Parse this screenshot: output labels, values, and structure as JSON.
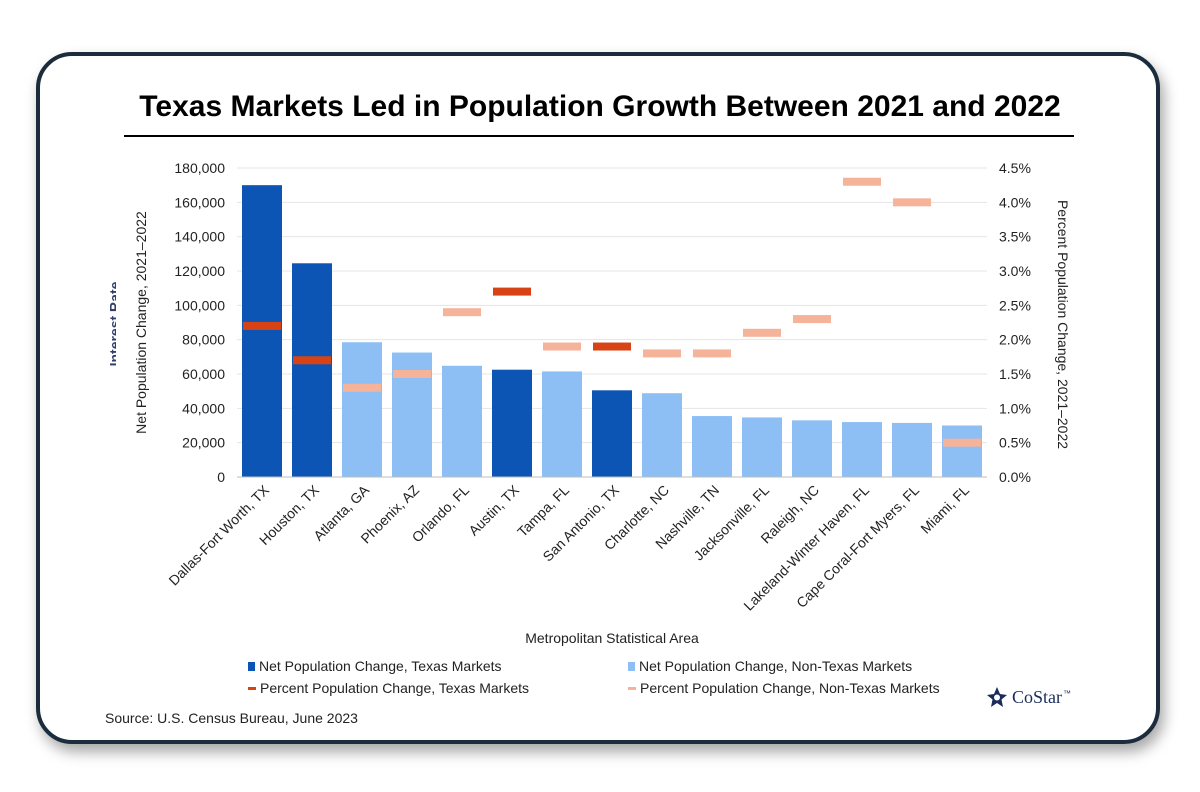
{
  "title": "Texas Markets Led in Population Growth Between 2021 and 2022",
  "ghost_label": "Interest Rate",
  "source": "Source: U.S. Census Bureau, June 2023",
  "brand": {
    "name": "CoStar",
    "mark": "™"
  },
  "colors": {
    "texas_bar": "#0d55b4",
    "nontexas_bar": "#8dbef4",
    "texas_pct": "#d84315",
    "nontexas_pct": "#f5b39a",
    "frame": "#1b2c3d"
  },
  "legend": [
    {
      "label": "Net Population Change, Texas Markets",
      "kind": "bar",
      "color": "#0d55b4"
    },
    {
      "label": "Net Population Change, Non-Texas Markets",
      "kind": "bar",
      "color": "#8dbef4"
    },
    {
      "label": "Percent Population Change, Texas Markets",
      "kind": "line",
      "color": "#d84315"
    },
    {
      "label": "Percent Population Change, Non-Texas Markets",
      "kind": "line",
      "color": "#f5b39a"
    }
  ],
  "chart_data": {
    "type": "bar",
    "title": "Texas Markets Led in Population Growth Between 2021 and 2022",
    "xlabel": "Metropolitan Statistical Area",
    "ylabel": "Net Population Change, 2021–2022",
    "y2label": "Percent Population Change, 2021–2022",
    "ylim": [
      0,
      180000
    ],
    "y2lim": [
      0,
      4.5
    ],
    "yticks": [
      0,
      20000,
      40000,
      60000,
      80000,
      100000,
      120000,
      140000,
      160000,
      180000
    ],
    "ytick_labels": [
      "0",
      "20,000",
      "40,000",
      "60,000",
      "80,000",
      "100,000",
      "120,000",
      "140,000",
      "160,000",
      "180,000"
    ],
    "y2ticks": [
      0,
      0.5,
      1,
      1.5,
      2,
      2.5,
      3,
      3.5,
      4,
      4.5
    ],
    "y2tick_labels": [
      "0.0%",
      "0.5%",
      "1.0%",
      "1.5%",
      "2.0%",
      "2.5%",
      "3.0%",
      "3.5%",
      "4.0%",
      "4.5%"
    ],
    "grid": true,
    "legend_position": "bottom",
    "categories": [
      "Dallas-Fort Worth, TX",
      "Houston, TX",
      "Atlanta, GA",
      "Phoenix, AZ",
      "Orlando, FL",
      "Austin, TX",
      "Tampa, FL",
      "San Antonio, TX",
      "Charlotte, NC",
      "Nashville, TN",
      "Jacksonville, FL",
      "Raleigh, NC",
      "Lakeland-Winter Haven, FL",
      "Cape Coral-Fort Myers, FL",
      "Miami, FL"
    ],
    "is_texas": [
      true,
      true,
      false,
      false,
      false,
      true,
      false,
      true,
      false,
      false,
      false,
      false,
      false,
      false,
      false
    ],
    "series": [
      {
        "name": "Net Population Change",
        "axis": "left",
        "values": [
          170000,
          124500,
          78500,
          72500,
          64800,
          62500,
          61500,
          50500,
          48800,
          35500,
          34700,
          33000,
          32000,
          31500,
          30000
        ]
      },
      {
        "name": "Percent Population Change",
        "axis": "right",
        "values": [
          2.2,
          1.7,
          1.3,
          1.5,
          2.4,
          2.7,
          1.9,
          1.9,
          1.8,
          1.8,
          2.1,
          2.3,
          4.3,
          4.0,
          0.5
        ]
      }
    ]
  }
}
